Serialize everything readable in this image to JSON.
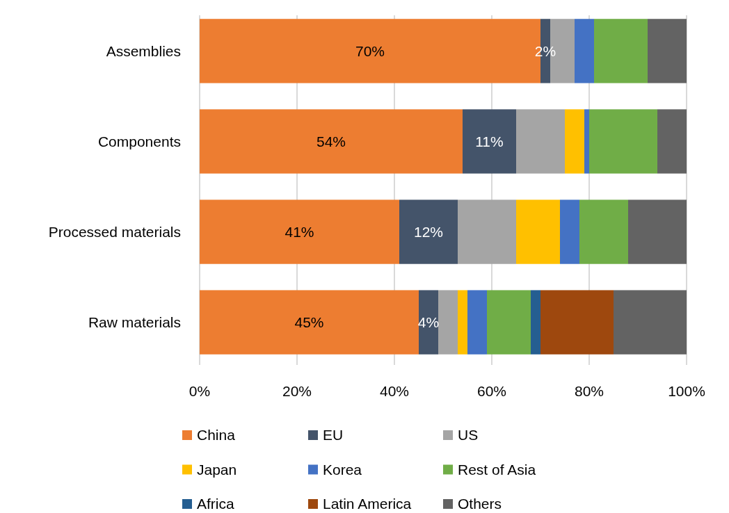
{
  "chart_data": {
    "type": "bar",
    "orientation": "horizontal",
    "stacked": true,
    "categories": [
      "Assemblies",
      "Components",
      "Processed materials",
      "Raw materials"
    ],
    "series": [
      {
        "name": "China",
        "color": "#ed7d31",
        "values": [
          70,
          54,
          41,
          45
        ],
        "value_labels": [
          "70%",
          "54%",
          "41%",
          "45%"
        ]
      },
      {
        "name": "EU",
        "color": "#44546a",
        "values": [
          2,
          11,
          12,
          4
        ],
        "value_labels": [
          "2%",
          "11%",
          "12%",
          "4%"
        ]
      },
      {
        "name": "US",
        "color": "#a5a5a5",
        "values": [
          5,
          10,
          12,
          4
        ]
      },
      {
        "name": "Japan",
        "color": "#ffc000",
        "values": [
          0,
          4,
          9,
          2
        ]
      },
      {
        "name": "Korea",
        "color": "#4472c4",
        "values": [
          4,
          1,
          4,
          4
        ]
      },
      {
        "name": "Rest of Asia",
        "color": "#70ad47",
        "values": [
          11,
          14,
          10,
          9
        ]
      },
      {
        "name": "Africa",
        "color": "#255e91",
        "values": [
          0,
          0,
          0,
          2
        ]
      },
      {
        "name": "Latin America",
        "color": "#9e480e",
        "values": [
          0,
          0,
          0,
          15
        ]
      },
      {
        "name": "Others",
        "color": "#636363",
        "values": [
          8,
          6,
          12,
          15
        ]
      }
    ],
    "xlim": [
      0,
      100
    ],
    "xticks": [
      {
        "value": 0,
        "label": "0%"
      },
      {
        "value": 20,
        "label": "20%"
      },
      {
        "value": 40,
        "label": "40%"
      },
      {
        "value": 60,
        "label": "60%"
      },
      {
        "value": 80,
        "label": "80%"
      },
      {
        "value": 100,
        "label": "100%"
      }
    ],
    "grid": "x",
    "legend": "bottom"
  }
}
